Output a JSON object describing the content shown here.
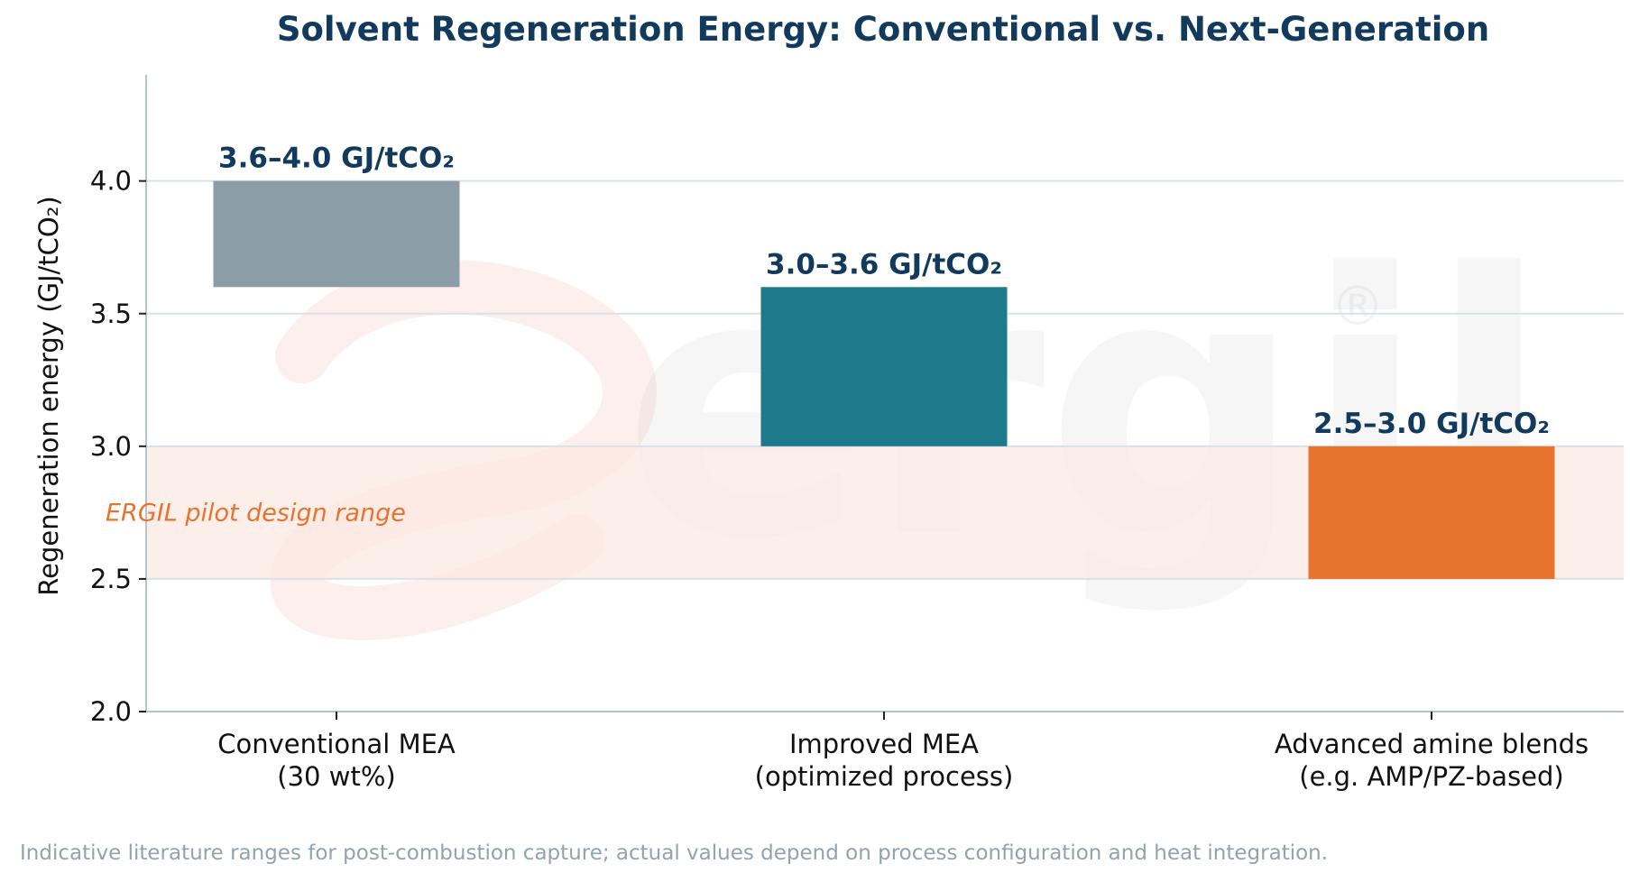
{
  "chart_data": {
    "type": "bar",
    "title": "Solvent Regeneration Energy: Conventional vs. Next-Generation",
    "ylabel": "Regeneration energy (GJ/tCO₂)",
    "ylim": [
      2.0,
      4.4
    ],
    "yticks": [
      2.0,
      2.5,
      3.0,
      3.5,
      4.0
    ],
    "ytick_labels": [
      "2.0",
      "2.5",
      "3.0",
      "3.5",
      "4.0"
    ],
    "grid": true,
    "categories": [
      [
        "Conventional MEA",
        "(30 wt%)"
      ],
      [
        "Improved MEA",
        "(optimized process)"
      ],
      [
        "Advanced amine blends",
        "(e.g. AMP/PZ-based)"
      ]
    ],
    "ranges": [
      {
        "low": 3.6,
        "high": 4.0,
        "label": "3.6–4.0 GJ/tCO₂",
        "color": "#8a9ba6"
      },
      {
        "low": 3.0,
        "high": 3.6,
        "label": "3.0–3.6 GJ/tCO₂",
        "color": "#1e7a8a"
      },
      {
        "low": 2.5,
        "high": 3.0,
        "label": "2.5–3.0 GJ/tCO₂",
        "color": "#e8732e"
      }
    ],
    "band": {
      "low": 2.5,
      "high": 3.0,
      "label": "ERGIL pilot design range",
      "color": "#fbe9e1"
    }
  },
  "footnote": "Indicative literature ranges for post-combustion capture; actual values depend on process configuration and heat integration.",
  "watermark": {
    "text": "ergil",
    "reg": "®"
  }
}
